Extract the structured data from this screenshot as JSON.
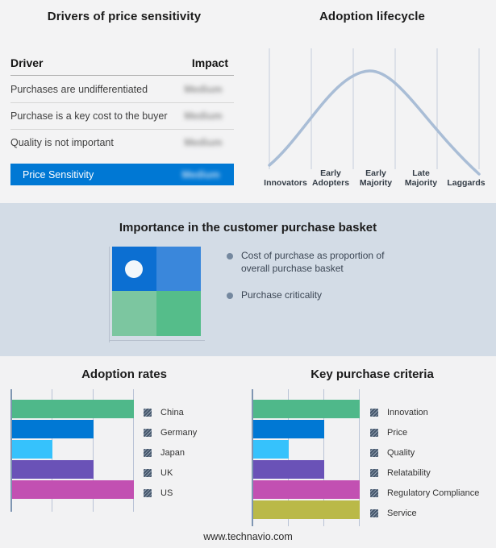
{
  "footer": {
    "url": "www.technavio.com"
  },
  "basket": {
    "title": "Importance in the customer purchase basket",
    "bullets": [
      "Cost of purchase as proportion of overall purchase basket",
      "Purchase criticality"
    ],
    "quadrant_colors": {
      "top_left": "#0c6fd2",
      "top_right": "#3a87db",
      "bottom_left": "#7cc6a0",
      "bottom_right": "#55bd8a"
    },
    "marker": "white-dot in top-left quadrant"
  },
  "chart_data": [
    {
      "id": "drivers-table",
      "type": "table",
      "title": "Drivers of price sensitivity",
      "columns": [
        "Driver",
        "Impact"
      ],
      "rows": [
        {
          "driver": "Purchases are undifferentiated",
          "impact": "Medium",
          "impact_blurred": true
        },
        {
          "driver": "Purchase is a key cost to the buyer",
          "impact": "Medium",
          "impact_blurred": true
        },
        {
          "driver": "Quality is not important",
          "impact": "Medium",
          "impact_blurred": true
        }
      ],
      "highlight": {
        "driver": "Price Sensitivity",
        "impact": "Medium",
        "impact_blurred": true,
        "row_color": "#0078d4"
      }
    },
    {
      "id": "adoption-lifecycle",
      "type": "line",
      "title": "Adoption lifecycle",
      "stages": [
        "Innovators",
        "Early Adopters",
        "Early Majority",
        "Late Majority",
        "Laggards"
      ],
      "curve": "bell-shaped diffusion curve, peak over Early Majority",
      "curve_points_normalized": [
        [
          0,
          0.05
        ],
        [
          0.12,
          0.2
        ],
        [
          0.25,
          0.46
        ],
        [
          0.37,
          0.8
        ],
        [
          0.48,
          0.97
        ],
        [
          0.56,
          0.92
        ],
        [
          0.68,
          0.6
        ],
        [
          0.8,
          0.33
        ],
        [
          0.9,
          0.15
        ],
        [
          1,
          0.0
        ]
      ],
      "curve_color": "#a9bdd6",
      "gridline_color": "#c5cedd",
      "grid": "vertical separators between stages, no numeric axes"
    },
    {
      "id": "adoption-rates",
      "type": "bar",
      "orientation": "horizontal",
      "title": "Adoption rates",
      "categories": [
        "China",
        "Germany",
        "Japan",
        "UK",
        "US"
      ],
      "values": [
        100,
        67,
        33,
        67,
        100
      ],
      "value_units": "% of axis length (no numeric labels shown)",
      "colors": [
        "#4fb88a",
        "#0078d4",
        "#36c2fc",
        "#6a52b7",
        "#c250b2"
      ],
      "gridlines_pct": [
        0,
        33.33,
        66.67,
        100
      ],
      "xlim": [
        0,
        100
      ],
      "legend_position": "right",
      "xlabel": "",
      "ylabel": ""
    },
    {
      "id": "key-purchase-criteria",
      "type": "bar",
      "orientation": "horizontal",
      "title": "Key purchase criteria",
      "categories": [
        "Innovation",
        "Price",
        "Quality",
        "Relatability",
        "Regulatory Compliance",
        "Service"
      ],
      "values": [
        100,
        67,
        33,
        67,
        100,
        100
      ],
      "value_units": "% of axis length (no numeric labels shown)",
      "colors": [
        "#4fb88a",
        "#0078d4",
        "#36c2fc",
        "#6a52b7",
        "#c250b2",
        "#bab948"
      ],
      "gridlines_pct": [
        0,
        33.33,
        66.67,
        100
      ],
      "xlim": [
        0,
        100
      ],
      "legend_position": "right",
      "xlabel": "",
      "ylabel": ""
    }
  ]
}
